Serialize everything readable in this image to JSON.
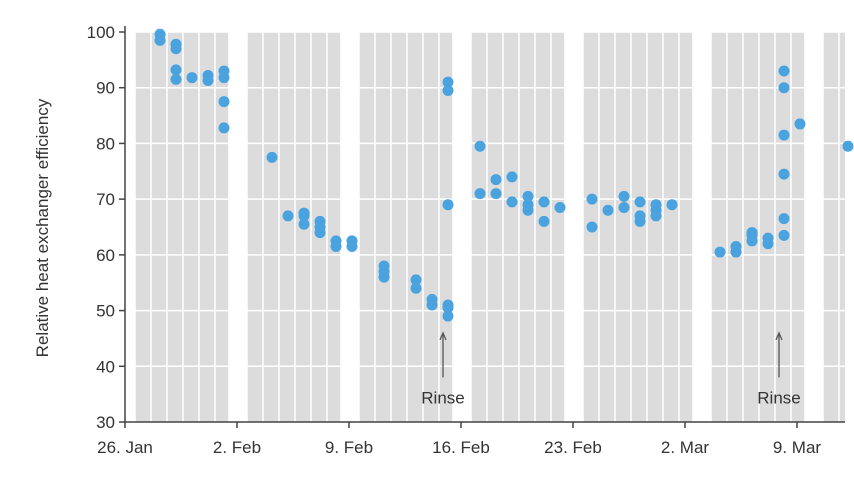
{
  "chart_data": {
    "type": "scatter",
    "ylabel": "Relative heat exchanger efficiency",
    "xlabel": "",
    "x_tick_labels": [
      "26. Jan",
      "2. Feb",
      "9. Feb",
      "16. Feb",
      "23. Feb",
      "2. Mar",
      "9. Mar"
    ],
    "x_range": [
      "2000-01-26",
      "2000-03-11"
    ],
    "ylim": [
      30,
      100
    ],
    "y_ticks": [
      30,
      40,
      50,
      60,
      70,
      80,
      90,
      100
    ],
    "grid": true,
    "colors": {
      "marker": "#4aa3df",
      "grid_band": "#dcdcdc",
      "grid_line": "#ffffff",
      "axis": "#444444"
    },
    "grid_bands": [
      [
        "2000-01-26",
        "2000-02-01"
      ],
      [
        "2000-02-02",
        "2000-02-08"
      ],
      [
        "2000-02-09",
        "2000-02-15"
      ],
      [
        "2000-02-16",
        "2000-02-22"
      ],
      [
        "2000-02-23",
        "2000-03-01"
      ],
      [
        "2000-03-02",
        "2000-03-08"
      ],
      [
        "2000-03-09",
        "2000-03-11"
      ]
    ],
    "annotations": [
      {
        "text": "Rinse",
        "date": "2000-02-15",
        "arrow_from": 38,
        "arrow_to": 46
      },
      {
        "text": "Rinse",
        "date": "2000-03-07",
        "arrow_from": 38,
        "arrow_to": 46
      }
    ],
    "points": [
      {
        "x": "2000-01-28",
        "y": 99.6
      },
      {
        "x": "2000-01-28",
        "y": 98.5
      },
      {
        "x": "2000-01-29",
        "y": 97.8
      },
      {
        "x": "2000-01-29",
        "y": 97.0
      },
      {
        "x": "2000-01-29",
        "y": 91.5
      },
      {
        "x": "2000-01-29",
        "y": 93.2
      },
      {
        "x": "2000-01-30",
        "y": 91.8
      },
      {
        "x": "2000-01-31",
        "y": 91.3
      },
      {
        "x": "2000-01-31",
        "y": 92.2
      },
      {
        "x": "2000-02-01",
        "y": 93.0
      },
      {
        "x": "2000-02-01",
        "y": 91.8
      },
      {
        "x": "2000-02-01",
        "y": 87.5
      },
      {
        "x": "2000-02-01",
        "y": 82.8
      },
      {
        "x": "2000-02-04",
        "y": 77.5
      },
      {
        "x": "2000-02-05",
        "y": 67.0
      },
      {
        "x": "2000-02-06",
        "y": 67.0
      },
      {
        "x": "2000-02-06",
        "y": 67.5
      },
      {
        "x": "2000-02-06",
        "y": 65.5
      },
      {
        "x": "2000-02-07",
        "y": 65.0
      },
      {
        "x": "2000-02-07",
        "y": 66.0
      },
      {
        "x": "2000-02-07",
        "y": 64.0
      },
      {
        "x": "2000-02-08",
        "y": 61.5
      },
      {
        "x": "2000-02-08",
        "y": 62.5
      },
      {
        "x": "2000-02-09",
        "y": 61.5
      },
      {
        "x": "2000-02-09",
        "y": 62.5
      },
      {
        "x": "2000-02-11",
        "y": 58.0
      },
      {
        "x": "2000-02-11",
        "y": 57.0
      },
      {
        "x": "2000-02-11",
        "y": 56.0
      },
      {
        "x": "2000-02-13",
        "y": 55.5
      },
      {
        "x": "2000-02-13",
        "y": 54.0
      },
      {
        "x": "2000-02-14",
        "y": 52.0
      },
      {
        "x": "2000-02-14",
        "y": 51.0
      },
      {
        "x": "2000-02-15",
        "y": 50.5
      },
      {
        "x": "2000-02-15",
        "y": 51.0
      },
      {
        "x": "2000-02-15",
        "y": 49.0
      },
      {
        "x": "2000-02-15",
        "y": 91.0
      },
      {
        "x": "2000-02-15",
        "y": 89.5
      },
      {
        "x": "2000-02-15",
        "y": 69.0
      },
      {
        "x": "2000-02-17",
        "y": 79.5
      },
      {
        "x": "2000-02-17",
        "y": 71.0
      },
      {
        "x": "2000-02-18",
        "y": 73.5
      },
      {
        "x": "2000-02-18",
        "y": 71.0
      },
      {
        "x": "2000-02-19",
        "y": 74.0
      },
      {
        "x": "2000-02-19",
        "y": 69.5
      },
      {
        "x": "2000-02-20",
        "y": 70.5
      },
      {
        "x": "2000-02-20",
        "y": 69.0
      },
      {
        "x": "2000-02-20",
        "y": 68.0
      },
      {
        "x": "2000-02-21",
        "y": 69.5
      },
      {
        "x": "2000-02-21",
        "y": 66.0
      },
      {
        "x": "2000-02-22",
        "y": 68.5
      },
      {
        "x": "2000-02-24",
        "y": 70.0
      },
      {
        "x": "2000-02-24",
        "y": 65.0
      },
      {
        "x": "2000-02-25",
        "y": 68.0
      },
      {
        "x": "2000-02-26",
        "y": 70.5
      },
      {
        "x": "2000-02-26",
        "y": 68.5
      },
      {
        "x": "2000-02-27",
        "y": 69.5
      },
      {
        "x": "2000-02-27",
        "y": 67.0
      },
      {
        "x": "2000-02-27",
        "y": 66.0
      },
      {
        "x": "2000-02-28",
        "y": 68.0
      },
      {
        "x": "2000-02-28",
        "y": 69.0
      },
      {
        "x": "2000-02-28",
        "y": 67.0
      },
      {
        "x": "2000-02-29",
        "y": 69.0
      },
      {
        "x": "2000-03-03",
        "y": 60.5
      },
      {
        "x": "2000-03-04",
        "y": 60.5
      },
      {
        "x": "2000-03-04",
        "y": 61.5
      },
      {
        "x": "2000-03-05",
        "y": 64.0
      },
      {
        "x": "2000-03-05",
        "y": 63.5
      },
      {
        "x": "2000-03-05",
        "y": 62.5
      },
      {
        "x": "2000-03-06",
        "y": 62.0
      },
      {
        "x": "2000-03-06",
        "y": 63.0
      },
      {
        "x": "2000-03-07",
        "y": 93.0
      },
      {
        "x": "2000-03-07",
        "y": 90.0
      },
      {
        "x": "2000-03-07",
        "y": 81.5
      },
      {
        "x": "2000-03-07",
        "y": 74.5
      },
      {
        "x": "2000-03-07",
        "y": 66.5
      },
      {
        "x": "2000-03-07",
        "y": 63.5
      },
      {
        "x": "2000-03-08",
        "y": 83.5
      },
      {
        "x": "2000-03-11",
        "y": 79.5
      }
    ]
  }
}
